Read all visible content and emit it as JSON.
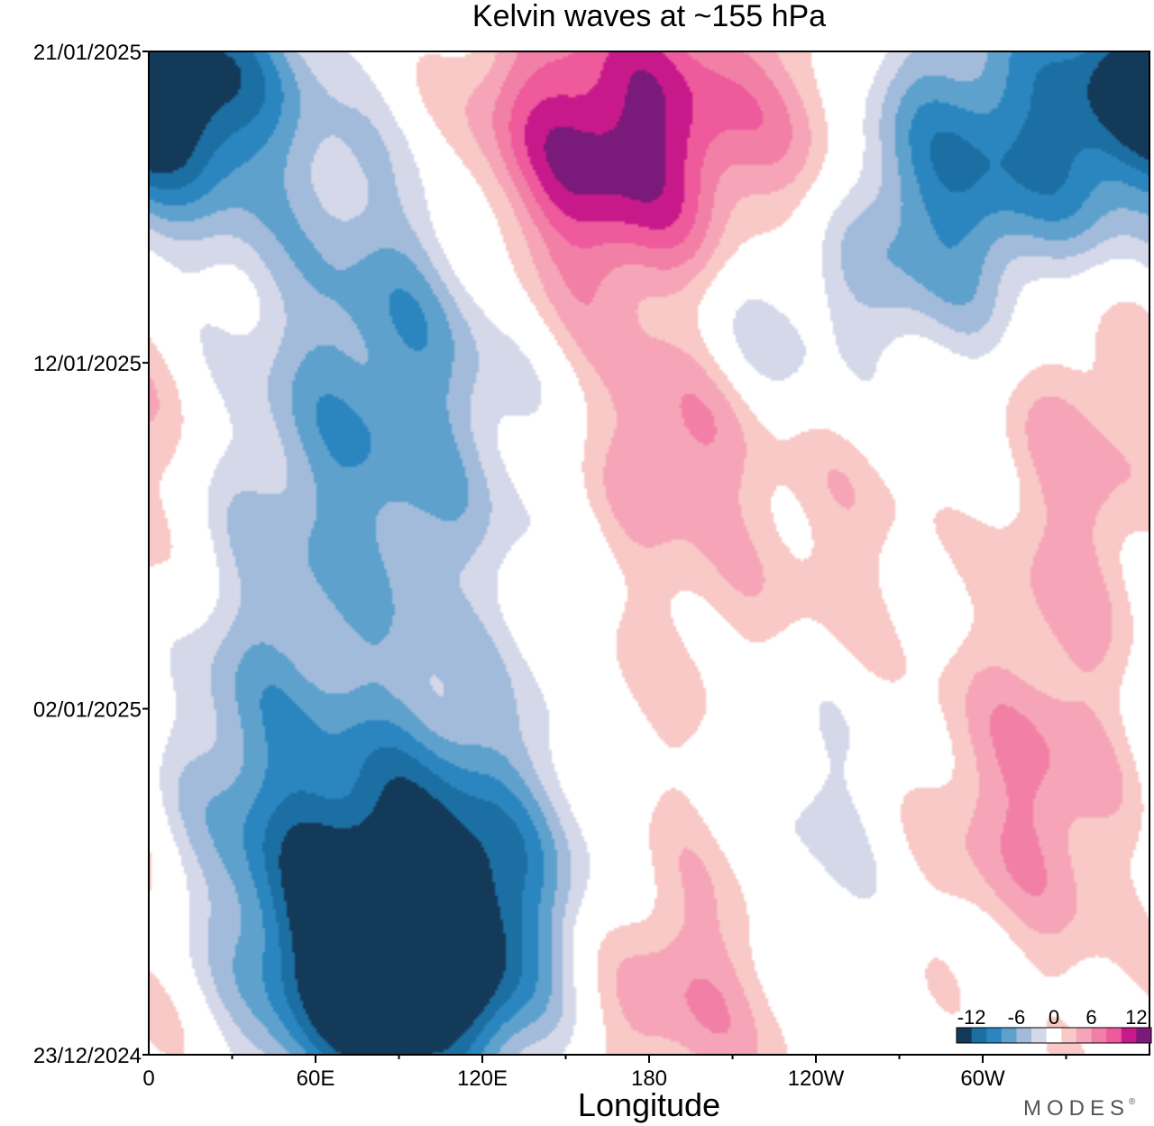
{
  "chart_data": {
    "type": "heatmap",
    "title": "Kelvin waves at ~155 hPa",
    "xlabel": "Longitude",
    "ylabel": "",
    "x_ticks": [
      "0",
      "60E",
      "120E",
      "180",
      "120W",
      "60W"
    ],
    "x_tick_values": [
      0,
      60,
      120,
      180,
      240,
      300
    ],
    "xlim": [
      0,
      360
    ],
    "y_ticks": [
      "23/12/2024",
      "02/01/2025",
      "12/01/2025",
      "21/01/2025"
    ],
    "y_tick_values": [
      "2024-12-23",
      "2025-01-02",
      "2025-01-12",
      "2025-01-21"
    ],
    "ylim": [
      "2024-12-23",
      "2025-01-21"
    ],
    "colorbar": {
      "tick_labels": [
        "-12",
        "-6",
        "0",
        "6",
        "12"
      ],
      "tick_values": [
        -12,
        -6,
        0,
        6,
        12
      ],
      "levels": [
        -14,
        -12,
        -10,
        -8,
        -6,
        -4,
        -2,
        2,
        4,
        6,
        8,
        10,
        12,
        14
      ],
      "colors": [
        "#143a5a",
        "#1c6fa3",
        "#2b86c0",
        "#5ea1cd",
        "#a2bbdb",
        "#d4d8e9",
        "#ffffff",
        "#f8c9c6",
        "#f6a5b8",
        "#f280a6",
        "#ee5a9c",
        "#c8198a",
        "#7a1a7a"
      ]
    },
    "anomalies": [
      {
        "lon": 95,
        "date": "2024-12-28",
        "value": -13,
        "sx": 45,
        "sy": 3.5
      },
      {
        "lon": 90,
        "date": "2024-12-25",
        "value": -11,
        "sx": 35,
        "sy": 2.5
      },
      {
        "lon": 78,
        "date": "2025-01-09",
        "value": -7,
        "sx": 40,
        "sy": 4
      },
      {
        "lon": 100,
        "date": "2025-01-15",
        "value": -6,
        "sx": 30,
        "sy": 3
      },
      {
        "lon": 28,
        "date": "2025-01-01",
        "value": -5,
        "sx": 28,
        "sy": 4
      },
      {
        "lon": 10,
        "date": "2025-01-20",
        "value": -9,
        "sx": 25,
        "sy": 2
      },
      {
        "lon": 340,
        "date": "2025-01-19",
        "value": -8,
        "sx": 60,
        "sy": 3
      },
      {
        "lon": 280,
        "date": "2025-01-16",
        "value": -6,
        "sx": 40,
        "sy": 3
      },
      {
        "lon": 220,
        "date": "2025-01-13",
        "value": -4,
        "sx": 22,
        "sy": 2
      },
      {
        "lon": 290,
        "date": "2025-01-07",
        "value": -4,
        "sx": 20,
        "sy": 3
      },
      {
        "lon": 240,
        "date": "2024-12-30",
        "value": -4,
        "sx": 28,
        "sy": 3
      },
      {
        "lon": 175,
        "date": "2025-01-19",
        "value": 11,
        "sx": 45,
        "sy": 3
      },
      {
        "lon": 145,
        "date": "2025-01-16",
        "value": 5,
        "sx": 40,
        "sy": 3
      },
      {
        "lon": 190,
        "date": "2025-01-10",
        "value": 5,
        "sx": 22,
        "sy": 2
      },
      {
        "lon": 190,
        "date": "2025-01-03",
        "value": 3,
        "sx": 30,
        "sy": 6
      },
      {
        "lon": 185,
        "date": "2024-12-25",
        "value": 6,
        "sx": 35,
        "sy": 3
      },
      {
        "lon": 330,
        "date": "2025-01-07",
        "value": 5,
        "sx": 40,
        "sy": 4
      },
      {
        "lon": 320,
        "date": "2024-12-30",
        "value": 6,
        "sx": 35,
        "sy": 3
      },
      {
        "lon": 10,
        "date": "2024-12-25",
        "value": 3,
        "sx": 25,
        "sy": 3
      },
      {
        "lon": 260,
        "date": "2025-01-07",
        "value": 3,
        "sx": 30,
        "sy": 3
      },
      {
        "lon": 345,
        "date": "2025-01-13",
        "value": 3,
        "sx": 25,
        "sy": 3
      },
      {
        "lon": 240,
        "date": "2025-01-18",
        "value": 4,
        "sx": 15,
        "sy": 3
      }
    ]
  },
  "logo": {
    "text": "MODES",
    "mark": "®"
  }
}
